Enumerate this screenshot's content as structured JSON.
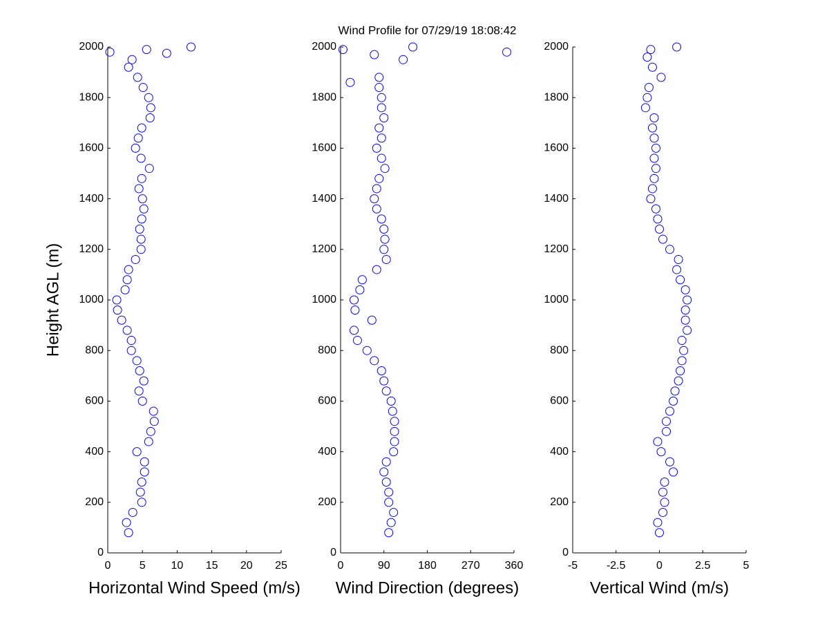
{
  "chart_data": [
    {
      "type": "scatter",
      "xlabel": "Horizontal Wind Speed (m/s)",
      "ylabel": "Height AGL (m)",
      "color": "#0000ff",
      "xlim": [
        0,
        25
      ],
      "xticks": [
        0,
        5,
        10,
        15,
        20,
        25
      ],
      "ylim": [
        0,
        2000
      ],
      "yticks": [
        0,
        200,
        400,
        600,
        800,
        1000,
        1200,
        1400,
        1600,
        1800,
        2000
      ],
      "x": [
        3.0,
        2.7,
        3.6,
        4.9,
        4.7,
        4.9,
        5.3,
        5.3,
        4.2,
        5.9,
        6.2,
        6.7,
        6.6,
        5.0,
        4.5,
        5.2,
        4.6,
        4.2,
        3.4,
        3.4,
        2.8,
        2.0,
        1.4,
        1.3,
        2.5,
        2.8,
        3.0,
        4.0,
        4.8,
        4.8,
        4.6,
        4.9,
        5.2,
        5.0,
        4.5,
        4.9,
        6.0,
        4.8,
        4.0,
        4.4,
        4.9,
        6.1,
        6.2,
        5.9,
        5.1,
        4.3,
        3.0,
        3.5,
        5.6,
        12.0,
        0.3,
        8.5
      ],
      "y": [
        80,
        120,
        160,
        200,
        240,
        280,
        320,
        360,
        400,
        440,
        480,
        520,
        560,
        600,
        640,
        680,
        720,
        760,
        800,
        840,
        880,
        920,
        960,
        1000,
        1040,
        1080,
        1120,
        1160,
        1200,
        1240,
        1280,
        1320,
        1360,
        1400,
        1440,
        1480,
        1520,
        1560,
        1600,
        1640,
        1680,
        1720,
        1760,
        1800,
        1840,
        1880,
        1920,
        1950,
        1990,
        2000,
        1980,
        1975
      ]
    },
    {
      "type": "scatter",
      "title": "Wind Profile for  07/29/19 18:08:42",
      "xlabel": "Wind Direction (degrees)",
      "color": "#0000ff",
      "xlim": [
        0,
        360
      ],
      "xticks": [
        0,
        90,
        180,
        270,
        360
      ],
      "ylim": [
        0,
        2000
      ],
      "yticks": [
        0,
        200,
        400,
        600,
        800,
        1000,
        1200,
        1400,
        1600,
        1800,
        2000
      ],
      "x": [
        100,
        105,
        110,
        100,
        100,
        95,
        90,
        95,
        110,
        112,
        112,
        112,
        108,
        105,
        95,
        90,
        85,
        70,
        55,
        35,
        28,
        65,
        30,
        28,
        40,
        45,
        75,
        95,
        90,
        92,
        90,
        85,
        75,
        70,
        75,
        80,
        92,
        85,
        75,
        85,
        80,
        90,
        85,
        85,
        80,
        80,
        20,
        130,
        5,
        150,
        345,
        70
      ],
      "y": [
        80,
        120,
        160,
        200,
        240,
        280,
        320,
        360,
        400,
        440,
        480,
        520,
        560,
        600,
        640,
        680,
        720,
        760,
        800,
        840,
        880,
        920,
        960,
        1000,
        1040,
        1080,
        1120,
        1160,
        1200,
        1240,
        1280,
        1320,
        1360,
        1400,
        1440,
        1480,
        1520,
        1560,
        1600,
        1640,
        1680,
        1720,
        1760,
        1800,
        1840,
        1880,
        1860,
        1950,
        1990,
        2000,
        1980,
        1970
      ]
    },
    {
      "type": "scatter",
      "xlabel": "Vertical Wind (m/s)",
      "color": "#0000ff",
      "xlim": [
        -5,
        5
      ],
      "xticks": [
        -5,
        -2.5,
        0,
        2.5,
        5
      ],
      "ylim": [
        0,
        2000
      ],
      "yticks": [
        0,
        200,
        400,
        600,
        800,
        1000,
        1200,
        1400,
        1600,
        1800,
        2000
      ],
      "x": [
        0,
        -0.1,
        0.2,
        0.3,
        0.2,
        0.3,
        0.8,
        0.6,
        0.1,
        -0.1,
        0.4,
        0.4,
        0.6,
        0.8,
        0.9,
        1.1,
        1.2,
        1.3,
        1.4,
        1.3,
        1.6,
        1.5,
        1.5,
        1.6,
        1.5,
        1.2,
        1.0,
        1.1,
        0.6,
        0.2,
        0,
        -0.1,
        -0.2,
        -0.5,
        -0.4,
        -0.3,
        -0.2,
        -0.3,
        -0.2,
        -0.3,
        -0.4,
        -0.3,
        -0.8,
        -0.7,
        -0.6,
        0.1,
        -0.4,
        -0.7,
        -0.5,
        1.0
      ],
      "y": [
        80,
        120,
        160,
        200,
        240,
        280,
        320,
        360,
        400,
        440,
        480,
        520,
        560,
        600,
        640,
        680,
        720,
        760,
        800,
        840,
        880,
        920,
        960,
        1000,
        1040,
        1080,
        1120,
        1160,
        1200,
        1240,
        1280,
        1320,
        1360,
        1400,
        1440,
        1480,
        1520,
        1560,
        1600,
        1640,
        1680,
        1720,
        1760,
        1800,
        1840,
        1880,
        1920,
        1960,
        1990,
        2000
      ]
    }
  ]
}
